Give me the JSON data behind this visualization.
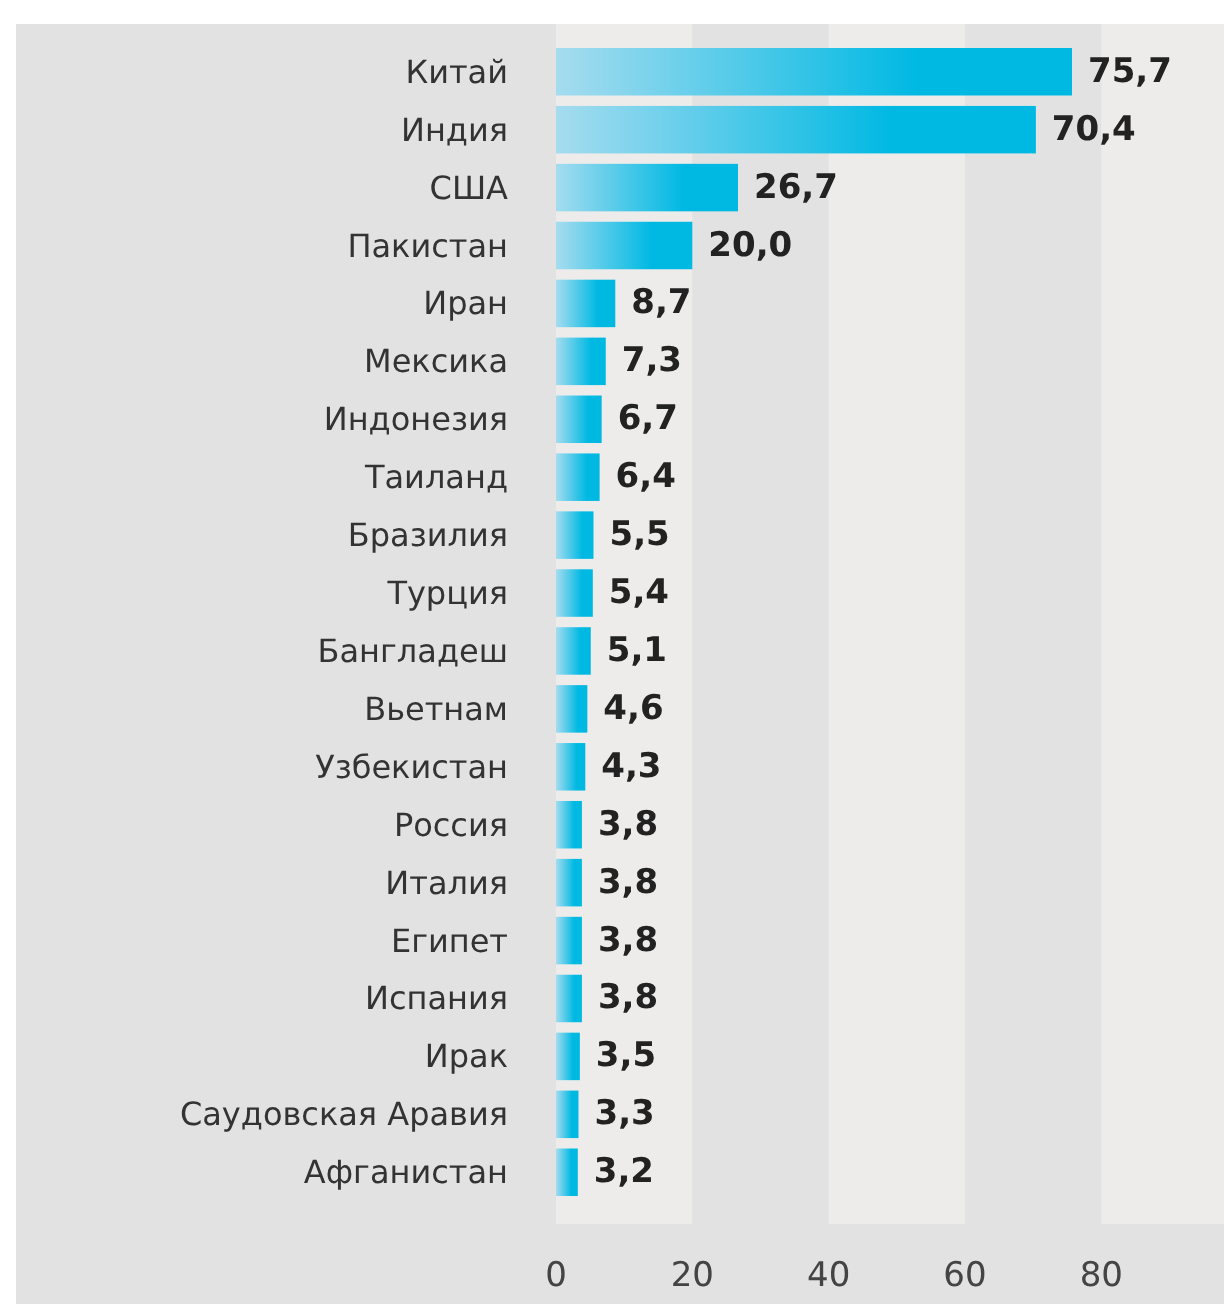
{
  "chart_data": {
    "type": "bar",
    "orientation": "horizontal",
    "categories": [
      "Китай",
      "Индия",
      "США",
      "Пакистан",
      "Иран",
      "Мексика",
      "Индонезия",
      "Таиланд",
      "Бразилия",
      "Турция",
      "Бангладеш",
      "Вьетнам",
      "Узбекистан",
      "Россия",
      "Италия",
      "Египет",
      "Испания",
      "Ирак",
      "Саудовская Аравия",
      "Афганистан"
    ],
    "values": [
      75.7,
      70.4,
      26.7,
      20.0,
      8.7,
      7.3,
      6.7,
      6.4,
      5.5,
      5.4,
      5.1,
      4.6,
      4.3,
      3.8,
      3.8,
      3.8,
      3.8,
      3.5,
      3.3,
      3.2
    ],
    "value_labels": [
      "75,7",
      "70,4",
      "26,7",
      "20,0",
      "8,7",
      "7,3",
      "6,7",
      "6,4",
      "5,5",
      "5,4",
      "5,1",
      "4,6",
      "4,3",
      "3,8",
      "3,8",
      "3,8",
      "3,8",
      "3,5",
      "3,3",
      "3,2"
    ],
    "color": "#00b9e3",
    "xlim": [
      0,
      98
    ],
    "xticks": [
      0,
      20,
      40,
      60,
      80
    ],
    "bands": [
      {
        "axis": "x",
        "from": 20,
        "to": 40,
        "color": "#e2e2e2"
      },
      {
        "axis": "x",
        "from": 60,
        "to": 80,
        "color": "#e2e2e2"
      }
    ]
  }
}
